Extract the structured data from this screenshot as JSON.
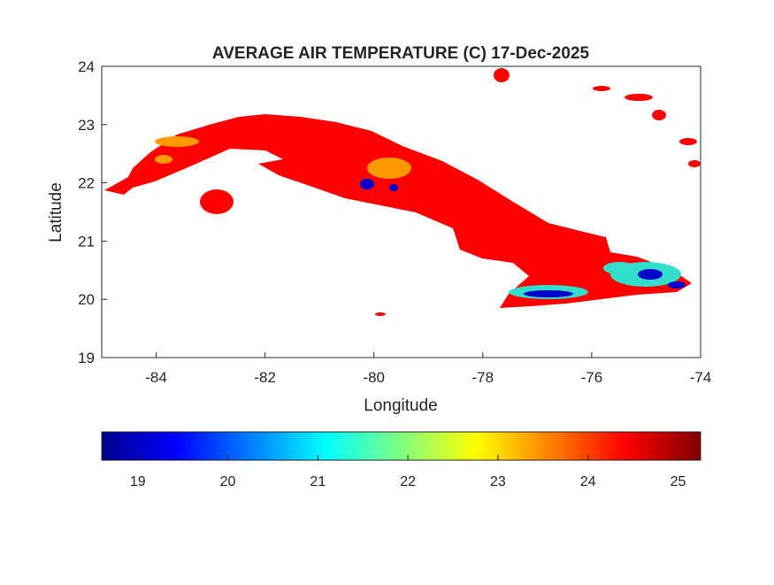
{
  "chart_data": {
    "type": "heatmap",
    "title": "AVERAGE AIR TEMPERATURE (C) 17-Dec-2025",
    "xlabel": "Longitude",
    "ylabel": "Latitude",
    "xlim": [
      -85,
      -74
    ],
    "ylim": [
      19,
      24
    ],
    "xticks": [
      "-84",
      "-82",
      "-80",
      "-78",
      "-76",
      "-74"
    ],
    "yticks": [
      "19",
      "20",
      "21",
      "22",
      "23",
      "24"
    ],
    "grid": false,
    "colormap": "jet",
    "colorbar": {
      "placement": "bottom",
      "range": [
        18.6,
        25.25
      ],
      "ticks": [
        "19",
        "20",
        "21",
        "22",
        "23",
        "24",
        "25"
      ]
    },
    "dominant_value": 24.3,
    "colors": {
      "main": "#ff0000",
      "warm": "#ff9900",
      "cool": "#0000cc"
    }
  }
}
